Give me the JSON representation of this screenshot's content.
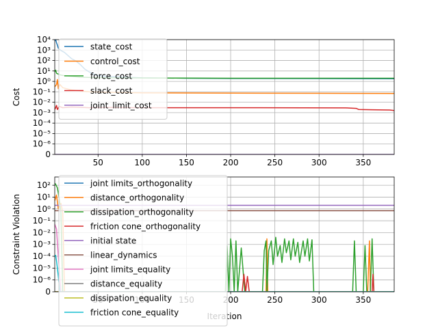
{
  "chart_data": [
    {
      "type": "line",
      "xlabel": "",
      "ylabel": "Cost",
      "yscale": "symlog",
      "xlim": [
        1,
        385
      ],
      "ylim": [
        0,
        10000
      ],
      "x_ticks": [
        50,
        100,
        150,
        200,
        250,
        300,
        350
      ],
      "x_tick_labels": [
        "50",
        "100",
        "150",
        "200",
        "250",
        "300",
        "350"
      ],
      "y_ticks": [
        0,
        1e-06,
        1e-05,
        0.0001,
        0.001,
        0.01,
        0.1,
        1,
        10,
        100,
        1000,
        10000
      ],
      "y_tick_labels": [
        "0",
        "10⁻⁶",
        "10⁻⁵",
        "10⁻⁴",
        "10⁻³",
        "10⁻²",
        "10⁻¹",
        "10⁰",
        "10¹",
        "10²",
        "10³",
        "10⁴"
      ],
      "grid": true,
      "legend_position": "upper-left",
      "series": [
        {
          "name": "state_cost",
          "color": "#1f77b4",
          "points": [
            [
              1,
              8000
            ],
            [
              2,
              10000
            ],
            [
              3,
              5000
            ],
            [
              4,
              3000
            ],
            [
              5,
              1500
            ],
            [
              8,
              900
            ],
            [
              12,
              600
            ],
            [
              16,
              300
            ],
            [
              20,
              150
            ],
            [
              25,
              90
            ],
            [
              30,
              40
            ],
            [
              35,
              15
            ],
            [
              40,
              8
            ],
            [
              45,
              5
            ],
            [
              50,
              3.5
            ],
            [
              60,
              3
            ],
            [
              80,
              2.5
            ],
            [
              100,
              2.2
            ],
            [
              150,
              2.0
            ],
            [
              200,
              1.9
            ],
            [
              300,
              1.85
            ],
            [
              385,
              1.8
            ]
          ]
        },
        {
          "name": "control_cost",
          "color": "#ff7f0e",
          "points": [
            [
              1,
              0.3
            ],
            [
              3,
              0.5
            ],
            [
              4,
              1.5
            ],
            [
              5,
              0.2
            ],
            [
              7,
              0.5
            ],
            [
              10,
              0.25
            ],
            [
              20,
              0.15
            ],
            [
              40,
              0.1
            ],
            [
              60,
              0.09
            ],
            [
              100,
              0.08
            ],
            [
              200,
              0.075
            ],
            [
              300,
              0.072
            ],
            [
              385,
              0.07
            ]
          ]
        },
        {
          "name": "force_cost",
          "color": "#2ca02c",
          "points": [
            [
              1,
              8
            ],
            [
              2,
              12
            ],
            [
              3,
              6
            ],
            [
              5,
              5
            ],
            [
              8,
              4
            ],
            [
              12,
              3.5
            ],
            [
              20,
              3
            ],
            [
              30,
              2.5
            ],
            [
              50,
              2.3
            ],
            [
              100,
              2.1
            ],
            [
              200,
              2.0
            ],
            [
              385,
              2.0
            ]
          ]
        },
        {
          "name": "slack_cost",
          "color": "#d62728",
          "points": [
            [
              1,
              0.002
            ],
            [
              2,
              0.003
            ],
            [
              3,
              0.005
            ],
            [
              4,
              0.002
            ],
            [
              6,
              0.004
            ],
            [
              10,
              0.003
            ],
            [
              20,
              0.0035
            ],
            [
              40,
              0.003
            ],
            [
              60,
              0.0032
            ],
            [
              100,
              0.003
            ],
            [
              200,
              0.003
            ],
            [
              330,
              0.0029
            ],
            [
              342,
              0.0026
            ],
            [
              345,
              0.002
            ],
            [
              360,
              0.0019
            ],
            [
              380,
              0.0018
            ],
            [
              385,
              0.0016
            ]
          ]
        },
        {
          "name": "joint_limit_cost",
          "color": "#9467bd",
          "points": [
            [
              1,
              0
            ],
            [
              385,
              0
            ]
          ]
        }
      ]
    },
    {
      "type": "line",
      "xlabel": "Iteration",
      "ylabel": "Constraint Violation",
      "yscale": "symlog",
      "xlim": [
        1,
        385
      ],
      "ylim": [
        0,
        500
      ],
      "x_ticks": [
        50,
        100,
        150,
        200,
        250,
        300,
        350
      ],
      "x_tick_labels": [
        "50",
        "100",
        "150",
        "200",
        "250",
        "300",
        "350"
      ],
      "y_ticks": [
        0,
        1e-06,
        1e-05,
        0.0001,
        0.001,
        0.01,
        0.1,
        1,
        10,
        100
      ],
      "y_tick_labels": [
        "0",
        "10⁻⁶",
        "10⁻⁵",
        "10⁻⁴",
        "10⁻³",
        "10⁻²",
        "10⁻¹",
        "10⁰",
        "10¹",
        "10²"
      ],
      "grid": true,
      "legend_position": "upper-left",
      "series": [
        {
          "name": "joint limits_orthogonality",
          "color": "#1f77b4",
          "points": [
            [
              1,
              0
            ],
            [
              385,
              0
            ]
          ]
        },
        {
          "name": "distance_orthogonality",
          "color": "#ff7f0e",
          "points": [
            [
              1,
              5
            ],
            [
              3,
              15
            ],
            [
              5,
              1
            ],
            [
              8,
              3
            ],
            [
              10,
              0.5
            ],
            [
              12,
              0
            ],
            [
              240,
              0
            ],
            [
              241,
              0.003
            ],
            [
              242,
              0
            ],
            [
              355,
              0
            ],
            [
              357,
              0.002
            ],
            [
              358,
              0
            ]
          ]
        },
        {
          "name": "dissipation_orthogonality",
          "color": "#2ca02c",
          "points": [
            [
              1,
              150
            ],
            [
              2,
              120
            ],
            [
              4,
              60
            ],
            [
              6,
              8
            ],
            [
              8,
              0.5
            ],
            [
              10,
              0
            ],
            [
              194,
              0
            ],
            [
              196,
              0.0008
            ],
            [
              198,
              0
            ],
            [
              200,
              0.003
            ],
            [
              202,
              0.0001
            ],
            [
              204,
              0
            ],
            [
              206,
              0.002
            ],
            [
              208,
              0
            ],
            [
              212,
              0.0005
            ],
            [
              216,
              0
            ],
            [
              236,
              0
            ],
            [
              238,
              0.0003
            ],
            [
              240,
              0.002
            ],
            [
              241,
              0
            ],
            [
              243,
              0.0003
            ],
            [
              246,
              0.002
            ],
            [
              248,
              2e-05
            ],
            [
              251,
              0.004
            ],
            [
              253,
              0.0001
            ],
            [
              256,
              0.0008
            ],
            [
              258,
              3e-05
            ],
            [
              261,
              0.003
            ],
            [
              263,
              0.0002
            ],
            [
              266,
              0.002
            ],
            [
              268,
              5e-05
            ],
            [
              271,
              0.003
            ],
            [
              273,
              0.0001
            ],
            [
              276,
              0.0015
            ],
            [
              278,
              3e-05
            ],
            [
              282,
              0.002
            ],
            [
              284,
              0.0001
            ],
            [
              287,
              0.003
            ],
            [
              289,
              4e-05
            ],
            [
              292,
              0.0025
            ],
            [
              294,
              0
            ],
            [
              338,
              0
            ],
            [
              340,
              0.002
            ],
            [
              342,
              0
            ],
            [
              350,
              0
            ],
            [
              352,
              0.0008
            ],
            [
              354,
              0
            ],
            [
              358,
              0
            ],
            [
              360,
              0.003
            ],
            [
              362,
              0
            ],
            [
              385,
              0
            ]
          ]
        },
        {
          "name": "friction cone_orthogonality",
          "color": "#d62728",
          "points": [
            [
              1,
              0
            ],
            [
              213,
              0
            ],
            [
              215,
              3e-06
            ],
            [
              217,
              0
            ],
            [
              219,
              2e-06
            ],
            [
              221,
              0
            ],
            [
              360,
              0
            ],
            [
              361,
              3e-06
            ],
            [
              362,
              0
            ]
          ]
        },
        {
          "name": "initial state",
          "color": "#9467bd",
          "points": [
            [
              1,
              2
            ],
            [
              385,
              2
            ]
          ]
        },
        {
          "name": "linear_dynamics",
          "color": "#8c564b",
          "points": [
            [
              1,
              0.7
            ],
            [
              385,
              0.7
            ]
          ]
        },
        {
          "name": "joint limits_equality",
          "color": "#e377c2",
          "points": [
            [
              1,
              0.05
            ],
            [
              3,
              0.02
            ],
            [
              5,
              0.0001
            ],
            [
              8,
              0
            ],
            [
              385,
              0
            ]
          ]
        },
        {
          "name": "distance_equality",
          "color": "#7f7f7f",
          "points": [
            [
              1,
              0
            ],
            [
              385,
              0
            ]
          ]
        },
        {
          "name": "dissipation_equality",
          "color": "#bcbd22",
          "points": [
            [
              1,
              0
            ],
            [
              385,
              0
            ]
          ]
        },
        {
          "name": "friction cone_equality",
          "color": "#17becf",
          "points": [
            [
              1,
              0.0001
            ],
            [
              2,
              0.00012
            ],
            [
              3,
              4e-05
            ],
            [
              4,
              1e-05
            ],
            [
              5,
              2e-06
            ],
            [
              7,
              0
            ],
            [
              385,
              0
            ]
          ]
        }
      ]
    }
  ]
}
